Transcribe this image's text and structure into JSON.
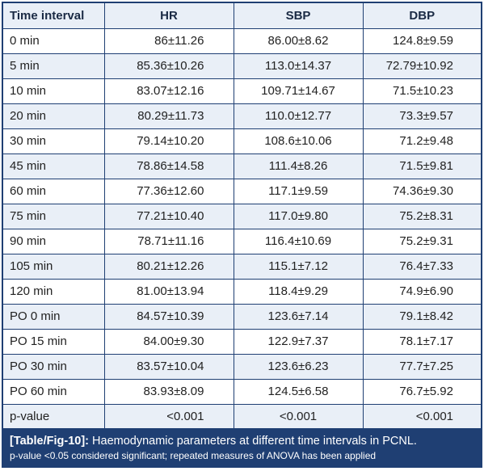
{
  "table": {
    "headers": [
      "Time interval",
      "HR",
      "SBP",
      "DBP"
    ],
    "rows": [
      {
        "interval": "0 min",
        "hr": "86±11.26",
        "sbp": "86.00±8.62",
        "dbp": "124.8±9.59"
      },
      {
        "interval": "5 min",
        "hr": "85.36±10.26",
        "sbp": "113.0±14.37",
        "dbp": "72.79±10.92"
      },
      {
        "interval": "10 min",
        "hr": "83.07±12.16",
        "sbp": "109.71±14.67",
        "dbp": "71.5±10.23"
      },
      {
        "interval": "20 min",
        "hr": "80.29±11.73",
        "sbp": "110.0±12.77",
        "dbp": "73.3±9.57"
      },
      {
        "interval": "30 min",
        "hr": "79.14±10.20",
        "sbp": "108.6±10.06",
        "dbp": "71.2±9.48"
      },
      {
        "interval": "45 min",
        "hr": "78.86±14.58",
        "sbp": "111.4±8.26",
        "dbp": "71.5±9.81"
      },
      {
        "interval": "60 min",
        "hr": "77.36±12.60",
        "sbp": "117.1±9.59",
        "dbp": "74.36±9.30"
      },
      {
        "interval": "75 min",
        "hr": "77.21±10.40",
        "sbp": "117.0±9.80",
        "dbp": "75.2±8.31"
      },
      {
        "interval": "90 min",
        "hr": "78.71±11.16",
        "sbp": "116.4±10.69",
        "dbp": "75.2±9.31"
      },
      {
        "interval": "105 min",
        "hr": "80.21±12.26",
        "sbp": "115.1±7.12",
        "dbp": "76.4±7.33"
      },
      {
        "interval": "120 min",
        "hr": "81.00±13.94",
        "sbp": "118.4±9.29",
        "dbp": "74.9±6.90"
      },
      {
        "interval": "PO 0 min",
        "hr": "84.57±10.39",
        "sbp": "123.6±7.14",
        "dbp": "79.1±8.42"
      },
      {
        "interval": "PO 15 min",
        "hr": "84.00±9.30",
        "sbp": "122.9±7.37",
        "dbp": "78.1±7.17"
      },
      {
        "interval": "PO 30 min",
        "hr": "83.57±10.04",
        "sbp": "123.6±6.23",
        "dbp": "77.7±7.25"
      },
      {
        "interval": "PO 60 min",
        "hr": "83.93±8.09",
        "sbp": "124.5±6.58",
        "dbp": "76.7±5.92"
      },
      {
        "interval": "p-value",
        "hr": "<0.001",
        "sbp": "<0.001",
        "dbp": "<0.001"
      }
    ]
  },
  "caption": {
    "tag": "[Table/Fig-10]:",
    "title": " Haemodynamic parameters at different time intervals in PCNL.",
    "note": "p-value <0.05 considered significant; repeated measures of ANOVA has been applied"
  },
  "colors": {
    "accent": "#1f3f73",
    "stripe": "#e9eff7"
  }
}
